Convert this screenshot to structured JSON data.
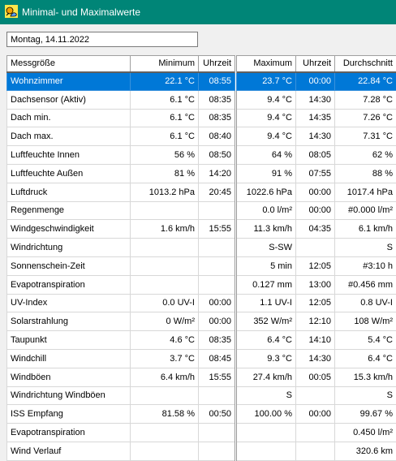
{
  "window": {
    "title": "Minimal- und Maximalwerte"
  },
  "date_field": {
    "value": "Montag, 14.11.2022"
  },
  "table": {
    "headers": [
      "Messgröße",
      "Minimum",
      "Uhrzeit",
      "Maximum",
      "Uhrzeit",
      "Durchschnitt"
    ],
    "rows": [
      [
        "Wohnzimmer",
        "22.1 °C",
        "08:55",
        "23.7 °C",
        "00:00",
        "22.84 °C"
      ],
      [
        "Dachsensor (Aktiv)",
        "6.1 °C",
        "08:35",
        "9.4 °C",
        "14:30",
        "7.28 °C"
      ],
      [
        "Dach min.",
        "6.1 °C",
        "08:35",
        "9.4 °C",
        "14:35",
        "7.26 °C"
      ],
      [
        "Dach max.",
        "6.1 °C",
        "08:40",
        "9.4 °C",
        "14:30",
        "7.31 °C"
      ],
      [
        "Luftfeuchte Innen",
        "56 %",
        "08:50",
        "64 %",
        "08:05",
        "62 %"
      ],
      [
        "Luftfeuchte Außen",
        "81 %",
        "14:20",
        "91 %",
        "07:55",
        "88 %"
      ],
      [
        "Luftdruck",
        "1013.2 hPa",
        "20:45",
        "1022.6 hPa",
        "00:00",
        "1017.4 hPa"
      ],
      [
        "Regenmenge",
        "",
        "",
        "0.0 l/m²",
        "00:00",
        "#0.000 l/m²"
      ],
      [
        "Windgeschwindigkeit",
        "1.6 km/h",
        "15:55",
        "11.3 km/h",
        "04:35",
        "6.1 km/h"
      ],
      [
        "Windrichtung",
        "",
        "",
        "S-SW",
        "",
        "S"
      ],
      [
        "Sonnenschein-Zeit",
        "",
        "",
        "5 min",
        "12:05",
        "#3:10 h"
      ],
      [
        "Evapotranspiration",
        "",
        "",
        "0.127 mm",
        "13:00",
        "#0.456 mm"
      ],
      [
        "UV-Index",
        "0.0 UV-I",
        "00:00",
        "1.1 UV-I",
        "12:05",
        "0.8 UV-I"
      ],
      [
        "Solarstrahlung",
        "0 W/m²",
        "00:00",
        "352 W/m²",
        "12:10",
        "108 W/m²"
      ],
      [
        "Taupunkt",
        "4.6 °C",
        "08:35",
        "6.4 °C",
        "14:10",
        "5.4 °C"
      ],
      [
        "Windchill",
        "3.7 °C",
        "08:45",
        "9.3 °C",
        "14:30",
        "6.4 °C"
      ],
      [
        "Windböen",
        "6.4 km/h",
        "15:55",
        "27.4 km/h",
        "00:05",
        "15.3 km/h"
      ],
      [
        "Windrichtung Windböen",
        "",
        "",
        "S",
        "",
        "S"
      ],
      [
        "ISS Empfang",
        "81.58 %",
        "00:50",
        "100.00 %",
        "00:00",
        "99.67 %"
      ],
      [
        "Evapotranspiration",
        "",
        "",
        "",
        "",
        "0.450 l/m²"
      ],
      [
        "Wind Verlauf",
        "",
        "",
        "",
        "",
        "320.6 km"
      ]
    ],
    "selected_row": 0
  },
  "colors": {
    "titlebar": "#008577",
    "selection": "#0078d7"
  },
  "icons": {
    "app": "weather-app-icon"
  }
}
